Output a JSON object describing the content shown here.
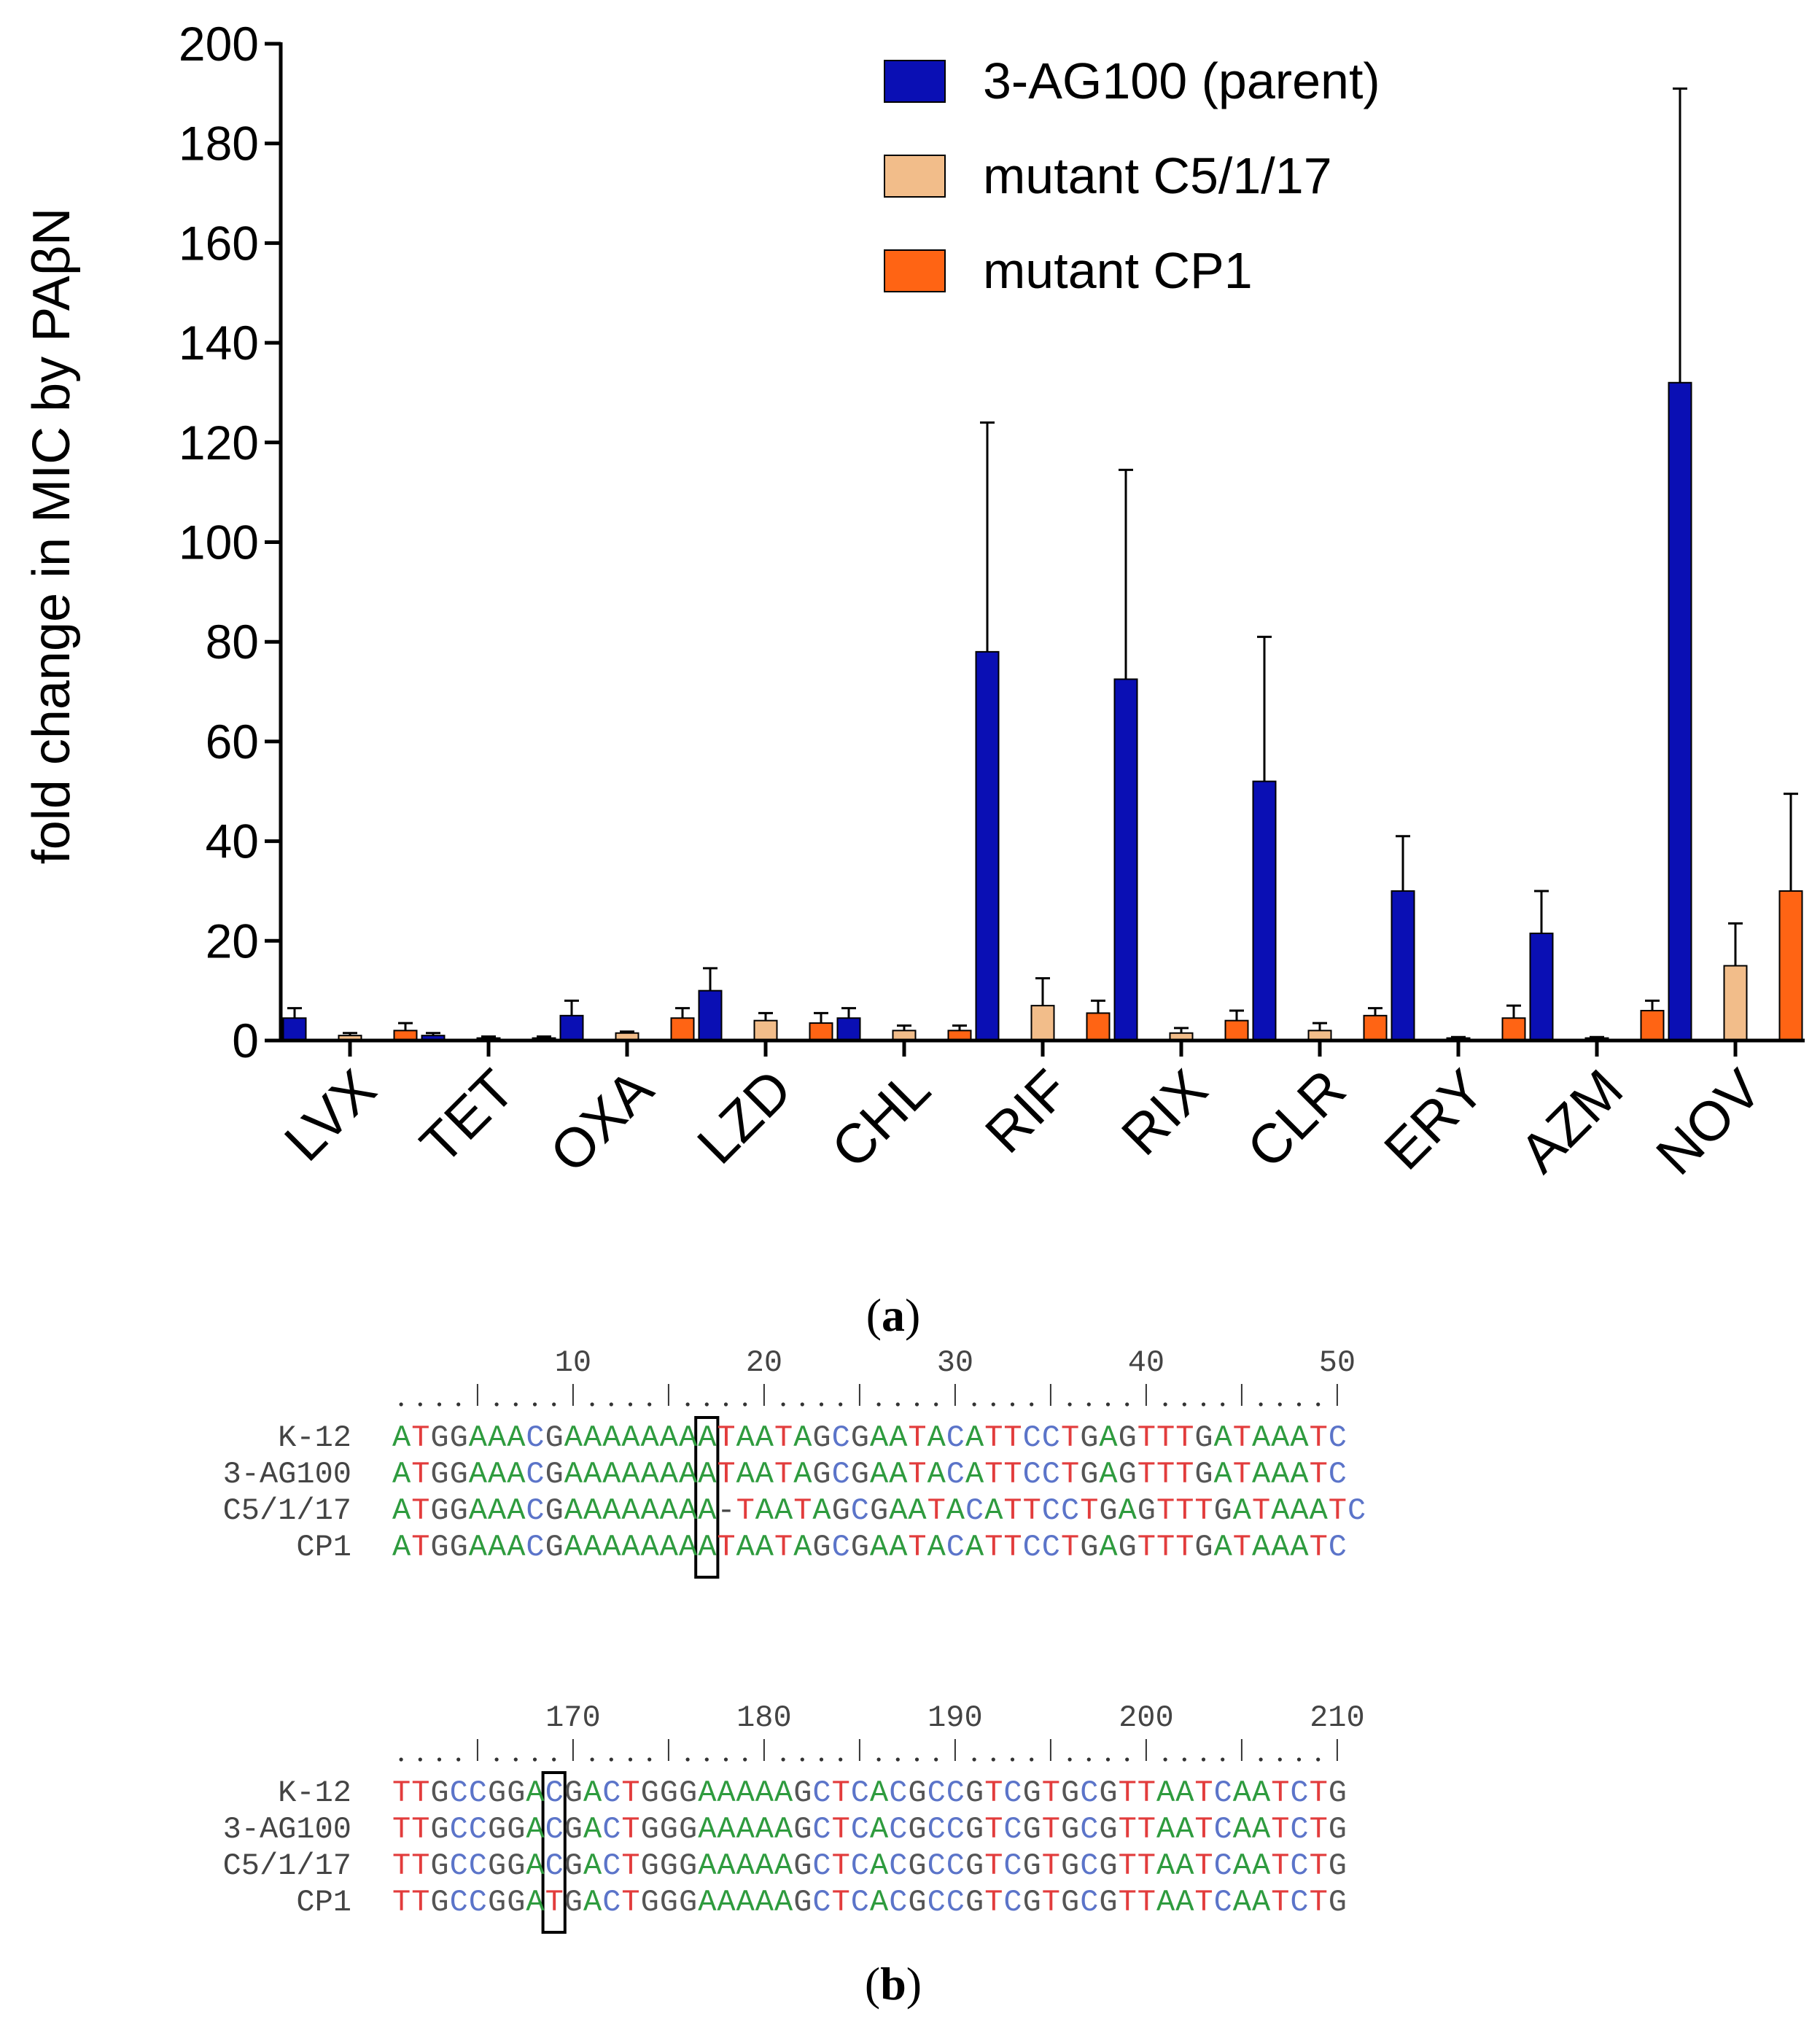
{
  "panel_a": {
    "caption_open": "(",
    "caption_letter": "a",
    "caption_close": ")"
  },
  "panel_b": {
    "caption_open": "(",
    "caption_letter": "b",
    "caption_close": ")"
  },
  "colors": {
    "parent": "#0a0fb4",
    "c5": "#f2bd8a",
    "cp1": "#ff6414",
    "nuc_A": "#2e9b3e",
    "nuc_C": "#5b74c9",
    "nuc_G": "#555555",
    "nuc_T": "#e23c3c"
  },
  "chart_data": {
    "type": "bar",
    "title": "",
    "xlabel": "",
    "ylabel": "fold change in MIC by PAβN",
    "ylim": [
      0,
      200
    ],
    "yticks": [
      0,
      20,
      40,
      60,
      80,
      100,
      120,
      140,
      160,
      180,
      200
    ],
    "categories": [
      "LVX",
      "TET",
      "OXA",
      "LZD",
      "CHL",
      "RIF",
      "RIX",
      "CLR",
      "ERY",
      "AZM",
      "NOV"
    ],
    "legend_position": "top-right",
    "grid": false,
    "series": [
      {
        "name": "3-AG100 (parent)",
        "color": "#0a0fb4",
        "values": [
          4.5,
          1.0,
          5.0,
          10.0,
          4.5,
          78,
          72.5,
          52,
          30,
          21.5,
          132
        ],
        "errors": [
          2.0,
          0.5,
          3.0,
          4.5,
          2.0,
          46,
          42,
          29,
          11,
          8.5,
          59
        ]
      },
      {
        "name": "mutant C5/1/17",
        "color": "#f2bd8a",
        "values": [
          1.0,
          0.5,
          1.5,
          4.0,
          2.0,
          7.0,
          1.5,
          2.0,
          0.5,
          0.5,
          15
        ],
        "errors": [
          0.5,
          0.3,
          0.3,
          1.5,
          1.0,
          5.5,
          1.0,
          1.5,
          0.2,
          0.2,
          8.5
        ]
      },
      {
        "name": "mutant CP1",
        "color": "#ff6414",
        "values": [
          2.0,
          0.5,
          4.5,
          3.5,
          2.0,
          5.5,
          4.0,
          5.0,
          4.5,
          6.0,
          30
        ],
        "errors": [
          1.5,
          0.3,
          2.0,
          2.0,
          1.0,
          2.5,
          2.0,
          1.5,
          2.5,
          2.0,
          19.5
        ]
      }
    ]
  },
  "alignments": [
    {
      "ticks": [
        {
          "pos": 10,
          "label": "10"
        },
        {
          "pos": 20,
          "label": "20"
        },
        {
          "pos": 30,
          "label": "30"
        },
        {
          "pos": 40,
          "label": "40"
        },
        {
          "pos": 50,
          "label": "50"
        }
      ],
      "ruler": "....|....|....|....|....|....|....|....|....|....|",
      "highlight_column": 16,
      "rows": [
        {
          "name": "K-12",
          "seq": "ATGGAAACGAAAAAAAATAATAGCGAATACATTCCTGAGTTTGATAAATC"
        },
        {
          "name": "3-AG100",
          "seq": "ATGGAAACGAAAAAAAATAATAGCGAATACATTCCTGAGTTTGATAAATC"
        },
        {
          "name": "C5/1/17",
          "seq": "ATGGAAACGAAAAAAAA-TAATAGCGAATACATTCCTGAGTTTGATAAATC"
        },
        {
          "name": "CP1",
          "seq": "ATGGAAACGAAAAAAAATAATAGCGAATACATTCCTGAGTTTGATAAATC"
        }
      ]
    },
    {
      "ticks": [
        {
          "pos": 170,
          "label": "170"
        },
        {
          "pos": 180,
          "label": "180"
        },
        {
          "pos": 190,
          "label": "190"
        },
        {
          "pos": 200,
          "label": "200"
        },
        {
          "pos": 210,
          "label": "210"
        }
      ],
      "ruler": "....|....|....|....|....|....|....|....|....|....|",
      "highlight_column": 8,
      "rows": [
        {
          "name": "K-12",
          "seq": "TTGCCGGACGACTGGGAAAAAGCTCACGCCGTCGTGCGTTAATCAATCTG"
        },
        {
          "name": "3-AG100",
          "seq": "TTGCCGGACGACTGGGAAAAAGCTCACGCCGTCGTGCGTTAATCAATCTG"
        },
        {
          "name": "C5/1/17",
          "seq": "TTGCCGGACGACTGGGAAAAAGCTCACGCCGTCGTGCGTTAATCAATCTG"
        },
        {
          "name": "CP1",
          "seq": "TTGCCGGATGACTGGGAAAAAGCTCACGCCGTCGTGCGTTAATCAATCTG"
        }
      ]
    }
  ]
}
